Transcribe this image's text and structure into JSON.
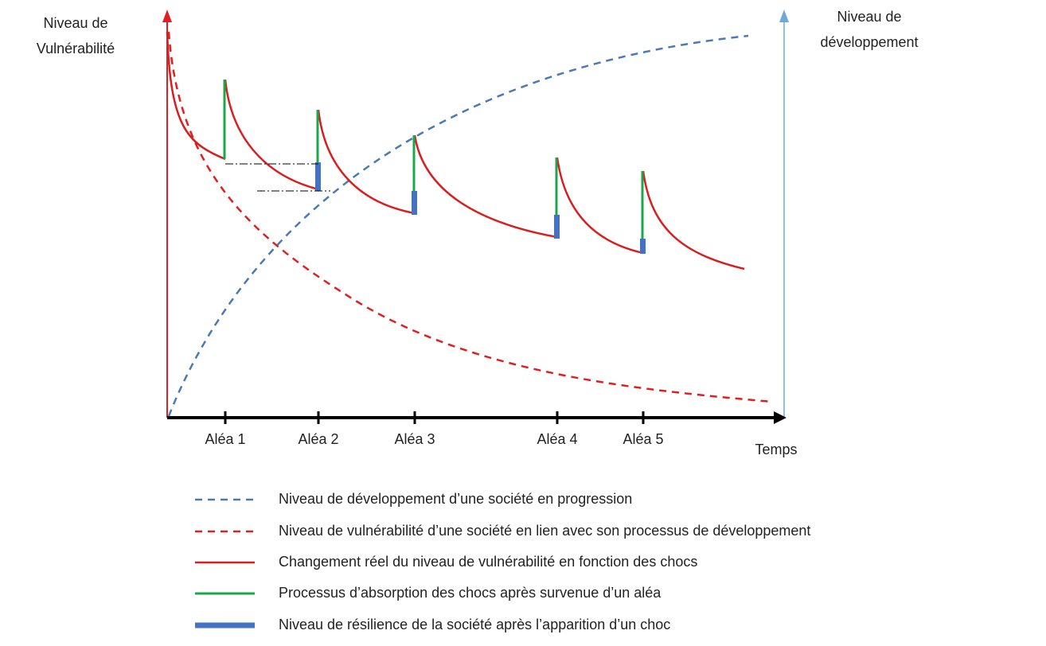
{
  "axes": {
    "left_label": [
      "Niveau de",
      "Vulnérabilité"
    ],
    "right_label": [
      "Niveau de",
      "développement"
    ],
    "x_label": "Temps"
  },
  "events": [
    "Aléa 1",
    "Aléa 2",
    "Aléa 3",
    "Aléa 4",
    "Aléa 5"
  ],
  "legend": [
    "Niveau de développement d’une société en progression",
    "Niveau de vulnérabilité d’une société en lien avec son processus de développement",
    "Changement réel du niveau de vulnérabilité en fonction des chocs",
    "Processus d’absorption des chocs après survenue d’un aléa",
    "Niveau de résilience de la société après l’apparition d’un choc"
  ]
}
